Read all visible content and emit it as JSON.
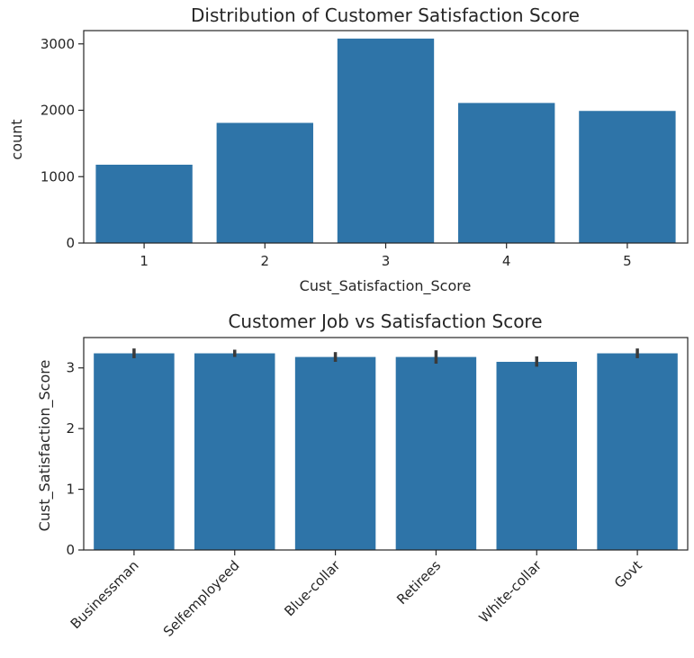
{
  "colors": {
    "bar": "#2e74a8",
    "errorbar": "#3a3a3a"
  },
  "chart_data": [
    {
      "type": "bar",
      "title": "Distribution of Customer Satisfaction Score",
      "xlabel": "Cust_Satisfaction_Score",
      "ylabel": "count",
      "categories": [
        "1",
        "2",
        "3",
        "4",
        "5"
      ],
      "values": [
        1180,
        1810,
        3080,
        2110,
        1990
      ],
      "ylim": [
        0,
        3200
      ],
      "yticks": [
        "0",
        "1000",
        "2000",
        "3000"
      ],
      "ytick_values": [
        0,
        1000,
        2000,
        3000
      ],
      "grid": false,
      "legend": "none"
    },
    {
      "type": "bar",
      "title": "Customer Job vs Satisfaction Score",
      "xlabel": "",
      "ylabel": "Cust_Satisfaction_Score",
      "categories": [
        "Businessman",
        "Selfemployeed",
        "Blue-collar",
        "Retirees",
        "White-collar",
        "Govt"
      ],
      "values": [
        3.24,
        3.24,
        3.18,
        3.18,
        3.1,
        3.24
      ],
      "error_low": [
        3.16,
        3.18,
        3.1,
        3.07,
        3.02,
        3.16
      ],
      "error_high": [
        3.32,
        3.3,
        3.26,
        3.29,
        3.19,
        3.32
      ],
      "ylim": [
        0,
        3.5
      ],
      "yticks": [
        "0",
        "1",
        "2",
        "3"
      ],
      "ytick_values": [
        0,
        1,
        2,
        3
      ],
      "grid": false,
      "legend": "none"
    }
  ]
}
